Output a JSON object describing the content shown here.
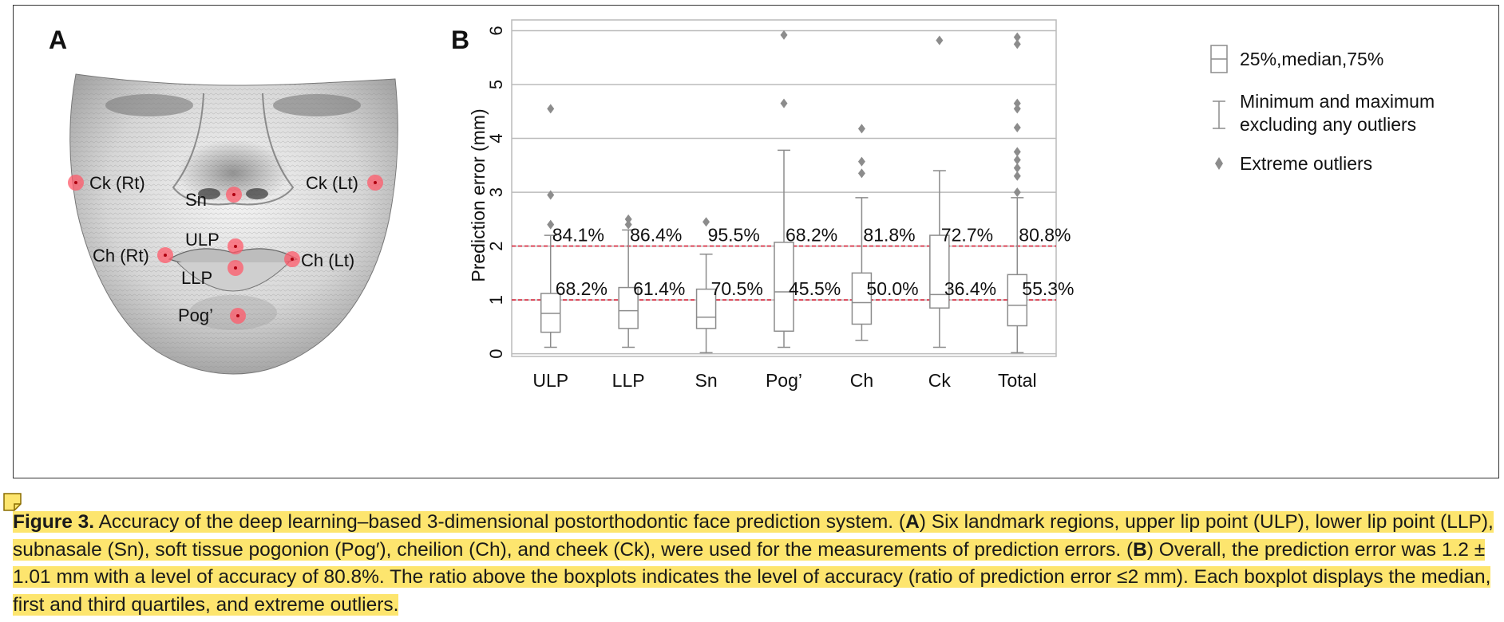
{
  "panel_a": {
    "label": "A",
    "landmarks": [
      {
        "id": "ck-rt",
        "label": "Ck (Rt)"
      },
      {
        "id": "ck-lt",
        "label": "Ck (Lt)"
      },
      {
        "id": "sn",
        "label": "Sn"
      },
      {
        "id": "ulp",
        "label": "ULP"
      },
      {
        "id": "ch-rt",
        "label": "Ch (Rt)"
      },
      {
        "id": "ch-lt",
        "label": "Ch (Lt)"
      },
      {
        "id": "llp",
        "label": "LLP"
      },
      {
        "id": "pog",
        "label": "Pog’"
      }
    ]
  },
  "chart_data": {
    "type": "boxplot",
    "panel_label": "B",
    "ylabel": "Prediction error (mm)",
    "xlabel": "",
    "ylim": [
      -0.05,
      6.2
    ],
    "yticks": [
      "0",
      "1",
      "2",
      "3",
      "4",
      "5",
      "6"
    ],
    "grid": true,
    "categories": [
      "ULP",
      "LLP",
      "Sn",
      "Pog’",
      "Ch",
      "Ck",
      "Total"
    ],
    "boxes": [
      {
        "min": 0.12,
        "q1": 0.4,
        "median": 0.75,
        "q3": 1.12,
        "max": 2.2,
        "outliers": [
          2.4,
          2.95,
          4.55
        ]
      },
      {
        "min": 0.12,
        "q1": 0.47,
        "median": 0.8,
        "q3": 1.23,
        "max": 2.3,
        "outliers": [
          2.4,
          2.5
        ]
      },
      {
        "min": 0.02,
        "q1": 0.47,
        "median": 0.68,
        "q3": 1.2,
        "max": 1.85,
        "outliers": [
          2.45
        ]
      },
      {
        "min": 0.12,
        "q1": 0.42,
        "median": 1.15,
        "q3": 2.07,
        "max": 3.78,
        "outliers": [
          4.65,
          5.92
        ]
      },
      {
        "min": 0.25,
        "q1": 0.55,
        "median": 0.95,
        "q3": 1.5,
        "max": 2.9,
        "outliers": [
          3.35,
          3.57,
          4.18
        ]
      },
      {
        "min": 0.12,
        "q1": 0.85,
        "median": 1.1,
        "q3": 2.2,
        "max": 3.4,
        "outliers": [
          5.82
        ]
      },
      {
        "min": 0.02,
        "q1": 0.52,
        "median": 0.9,
        "q3": 1.47,
        "max": 2.9,
        "outliers": [
          3.0,
          3.3,
          3.45,
          3.6,
          3.75,
          4.2,
          4.55,
          4.65,
          5.75,
          5.88
        ]
      }
    ],
    "reference_lines": [
      {
        "y": 2,
        "color": "#d9263b",
        "style": "dashed"
      },
      {
        "y": 1,
        "color": "#d9263b",
        "style": "dashed"
      }
    ],
    "labels_at_2mm": [
      "84.1%",
      "86.4%",
      "95.5%",
      "68.2%",
      "81.8%",
      "72.7%",
      "80.8%"
    ],
    "labels_at_1mm": [
      "68.2%",
      "61.4%",
      "70.5%",
      "45.5%",
      "50.0%",
      "36.4%",
      "55.3%"
    ],
    "legend": {
      "position": "right",
      "items": [
        {
          "icon": "box-icon",
          "lines": [
            "25%,median,75%"
          ]
        },
        {
          "icon": "whisker-icon",
          "lines": [
            "Minimum and maximum",
            "excluding any outliers"
          ]
        },
        {
          "icon": "diamond-icon",
          "lines": [
            "Extreme outliers"
          ]
        }
      ]
    },
    "colors": {
      "box": "#8c8c8c",
      "outlier": "#8c8c8c",
      "grid": "#bbbbbb",
      "reference": "#d9263b",
      "highlight": "#fde56e"
    }
  },
  "caption": {
    "label": "Figure 3.",
    "seg1": " Accuracy of the deep learning–based 3-dimensional postorthodontic face prediction system. (",
    "a": "A",
    "seg2": ") Six landmark regions, upper lip point (ULP), lower lip point (LLP), subnasale (Sn), soft tissue pogonion (Pog′), cheilion (Ch), and cheek (Ck), were used for the measurements of prediction errors. (",
    "b": "B",
    "seg3": ") Overall, the prediction error was 1.2 ± 1.01 mm with a level of accuracy of 80.8%. The ratio above the boxplots indicates the level of accuracy (ratio of prediction error ≤2 mm). Each boxplot displays the median, first and third quartiles, and extreme outliers."
  }
}
